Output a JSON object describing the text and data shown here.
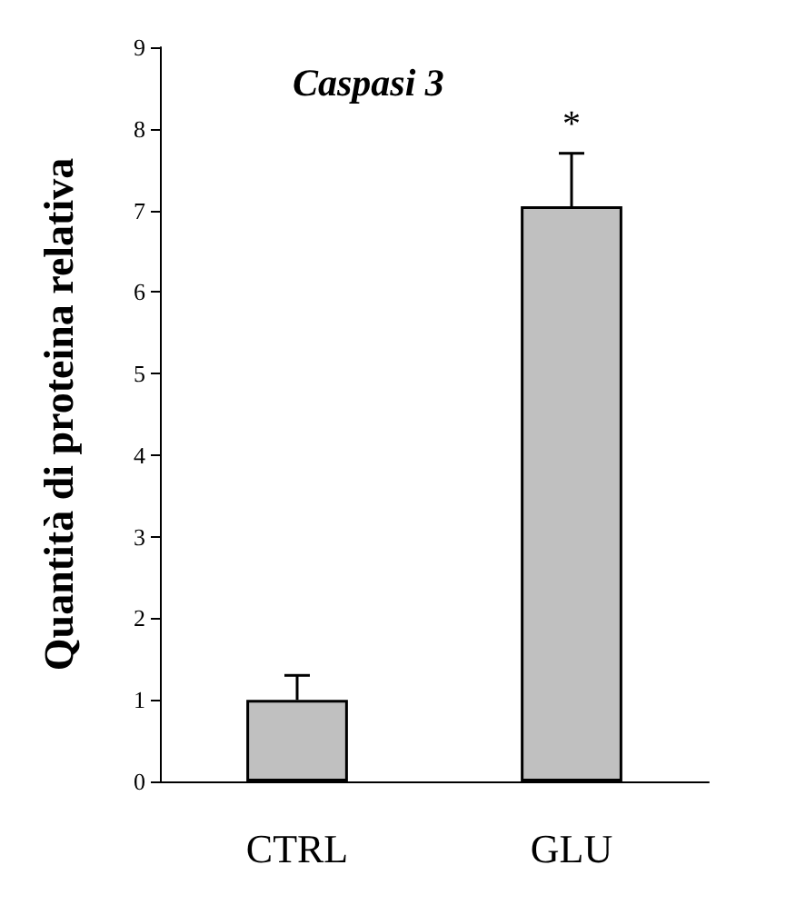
{
  "chart_data": {
    "type": "bar",
    "title": "Caspasi 3",
    "ylabel": "Quantità di proteina relativa",
    "categories": [
      "CTRL",
      "GLU"
    ],
    "values": [
      1.0,
      7.05
    ],
    "errors": [
      [
        1.0,
        1.3
      ],
      [
        7.05,
        7.7
      ]
    ],
    "color": "#c0c0c0",
    "ylim": [
      0,
      9
    ],
    "yticks": [
      0,
      1,
      2,
      3,
      4,
      5,
      6,
      7,
      8,
      9
    ],
    "annotations": [
      "*"
    ],
    "grid": false
  }
}
